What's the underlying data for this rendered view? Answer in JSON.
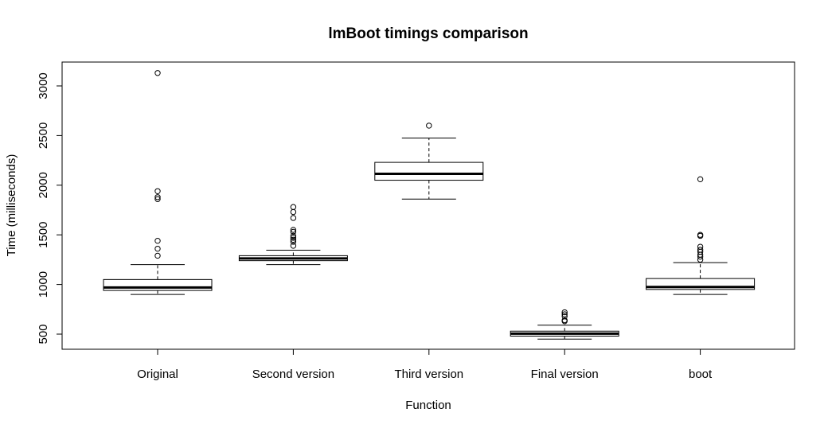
{
  "chart_data": {
    "type": "boxplot",
    "title": "lmBoot timings comparison",
    "xlabel": "Function",
    "ylabel": "Time (milliseconds)",
    "ylim": [
      335,
      3200
    ],
    "yticks": [
      500,
      1000,
      1500,
      2000,
      2500,
      3000
    ],
    "grid": false,
    "categories": [
      "Original",
      "Second version",
      "Third version",
      "Final version",
      "boot"
    ],
    "boxes": [
      {
        "name": "Original",
        "whisker_low": 900,
        "q1": 940,
        "median": 970,
        "q3": 1050,
        "whisker_high": 1200,
        "outliers": [
          1290,
          1360,
          1440,
          1860,
          1880,
          1940,
          3130
        ]
      },
      {
        "name": "Second version",
        "whisker_low": 1200,
        "q1": 1240,
        "median": 1262,
        "q3": 1290,
        "whisker_high": 1345,
        "outliers": [
          1390,
          1430,
          1450,
          1470,
          1490,
          1530,
          1550,
          1670,
          1730,
          1780
        ]
      },
      {
        "name": "Third version",
        "whisker_low": 1860,
        "q1": 2050,
        "median": 2115,
        "q3": 2230,
        "whisker_high": 2475,
        "outliers": [
          2600
        ]
      },
      {
        "name": "Final version",
        "whisker_low": 450,
        "q1": 480,
        "median": 505,
        "q3": 530,
        "whisker_high": 590,
        "outliers": [
          630,
          640,
          680,
          700,
          720
        ]
      },
      {
        "name": "boot",
        "whisker_low": 900,
        "q1": 950,
        "median": 975,
        "q3": 1060,
        "whisker_high": 1220,
        "outliers": [
          1250,
          1280,
          1300,
          1330,
          1350,
          1380,
          1490,
          1500,
          2060
        ]
      }
    ]
  }
}
